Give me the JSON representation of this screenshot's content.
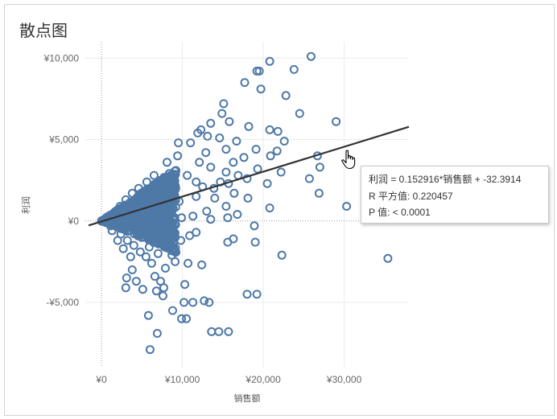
{
  "title": "散点图",
  "tooltip": {
    "line1": "利润 = 0.152916*销售额 + -32.3914",
    "line2": "R 平方值: 0.220457",
    "line3": "P 值: < 0.0001"
  },
  "colors": {
    "marker": "#4e79a7",
    "trend": "#333333"
  },
  "chart_data": {
    "type": "scatter",
    "xlabel": "销售额",
    "ylabel": "利润",
    "xlim": [
      -2000,
      38000
    ],
    "ylim": [
      -9000,
      11000
    ],
    "x_ticks": [
      0,
      10000,
      20000,
      30000
    ],
    "x_tick_labels": [
      "¥0",
      "¥10,000",
      "¥20,000",
      "¥30,000"
    ],
    "y_ticks": [
      -5000,
      0,
      5000,
      10000
    ],
    "y_tick_labels": [
      "-¥5,000",
      "¥0",
      "¥5,000",
      "¥10,000"
    ],
    "trend_line": {
      "slope": 0.152916,
      "intercept": -32.3914
    },
    "points": [
      [
        25900,
        10100
      ],
      [
        20800,
        9800
      ],
      [
        23800,
        9300
      ],
      [
        19200,
        9200
      ],
      [
        19500,
        9200
      ],
      [
        17700,
        8500
      ],
      [
        19700,
        8100
      ],
      [
        22800,
        7700
      ],
      [
        15100,
        7200
      ],
      [
        24500,
        6600
      ],
      [
        14900,
        6600
      ],
      [
        29000,
        6100
      ],
      [
        15800,
        6100
      ],
      [
        13500,
        6000
      ],
      [
        18200,
        5800
      ],
      [
        20800,
        5600
      ],
      [
        21800,
        5500
      ],
      [
        12300,
        5600
      ],
      [
        11900,
        5400
      ],
      [
        13100,
        5200
      ],
      [
        14600,
        5100
      ],
      [
        16700,
        4900
      ],
      [
        11000,
        4800
      ],
      [
        9500,
        4800
      ],
      [
        22600,
        4900
      ],
      [
        19100,
        4400
      ],
      [
        21700,
        4300
      ],
      [
        15400,
        4400
      ],
      [
        12900,
        4200
      ],
      [
        26700,
        4000
      ],
      [
        20900,
        4000
      ],
      [
        9400,
        4000
      ],
      [
        17600,
        3900
      ],
      [
        12100,
        3600
      ],
      [
        16300,
        3600
      ],
      [
        27000,
        3300
      ],
      [
        13500,
        3300
      ],
      [
        19300,
        3200
      ],
      [
        15400,
        3000
      ],
      [
        22200,
        3000
      ],
      [
        16900,
        2800
      ],
      [
        10600,
        2800
      ],
      [
        25700,
        2600
      ],
      [
        18000,
        2600
      ],
      [
        11700,
        2400
      ],
      [
        14700,
        2400
      ],
      [
        20500,
        2300
      ],
      [
        15700,
        2300
      ],
      [
        13900,
        2000
      ],
      [
        12500,
        2100
      ],
      [
        16400,
        1700
      ],
      [
        26900,
        1700
      ],
      [
        11700,
        1500
      ],
      [
        14000,
        1400
      ],
      [
        18100,
        1400
      ],
      [
        30300,
        900
      ],
      [
        20800,
        800
      ],
      [
        15400,
        900
      ],
      [
        13000,
        600
      ],
      [
        16800,
        400
      ],
      [
        13500,
        100
      ],
      [
        11300,
        300
      ],
      [
        9900,
        200
      ],
      [
        15600,
        200
      ],
      [
        18900,
        -300
      ],
      [
        11700,
        -700
      ],
      [
        16300,
        -1100
      ],
      [
        19000,
        -1300
      ],
      [
        15600,
        -1300
      ],
      [
        10900,
        -900
      ],
      [
        9800,
        -1200
      ],
      [
        35400,
        -2300
      ],
      [
        22300,
        -2100
      ],
      [
        12400,
        -2700
      ],
      [
        10700,
        -2600
      ],
      [
        8700,
        -2100
      ],
      [
        9100,
        -2500
      ],
      [
        7000,
        -2000
      ],
      [
        5900,
        -1600
      ],
      [
        8400,
        -1700
      ],
      [
        7900,
        -2900
      ],
      [
        6600,
        -3400
      ],
      [
        3800,
        -3000
      ],
      [
        3100,
        -3500
      ],
      [
        4300,
        -3700
      ],
      [
        3000,
        -4100
      ],
      [
        5100,
        -4200
      ],
      [
        7300,
        -3700
      ],
      [
        10300,
        -3900
      ],
      [
        7700,
        -4100
      ],
      [
        6800,
        -4300
      ],
      [
        7600,
        -4600
      ],
      [
        18000,
        -4500
      ],
      [
        19200,
        -4500
      ],
      [
        10200,
        -5000
      ],
      [
        11300,
        -5000
      ],
      [
        12700,
        -4900
      ],
      [
        13300,
        -5000
      ],
      [
        8800,
        -5500
      ],
      [
        5800,
        -5800
      ],
      [
        9900,
        -6000
      ],
      [
        10500,
        -6000
      ],
      [
        6900,
        -6900
      ],
      [
        13600,
        -6800
      ],
      [
        14500,
        -6800
      ],
      [
        15700,
        -6800
      ],
      [
        6000,
        -7900
      ],
      [
        1500,
        200
      ],
      [
        2200,
        600
      ],
      [
        2900,
        900
      ],
      [
        3500,
        1100
      ],
      [
        4100,
        1300
      ],
      [
        4800,
        1500
      ],
      [
        5300,
        1700
      ],
      [
        6100,
        1900
      ],
      [
        6700,
        2200
      ],
      [
        7300,
        2400
      ],
      [
        7900,
        2500
      ],
      [
        8600,
        2700
      ],
      [
        9200,
        3100
      ],
      [
        8100,
        3600
      ],
      [
        6500,
        2800
      ],
      [
        5600,
        2400
      ],
      [
        4600,
        2000
      ],
      [
        3800,
        1700
      ],
      [
        3000,
        1300
      ],
      [
        2300,
        900
      ],
      [
        1800,
        -300
      ],
      [
        2400,
        -800
      ],
      [
        3200,
        -1200
      ],
      [
        4000,
        -1500
      ],
      [
        4800,
        -1900
      ],
      [
        5500,
        -2200
      ],
      [
        6200,
        -2600
      ],
      [
        3600,
        -2200
      ],
      [
        2700,
        -1700
      ],
      [
        2000,
        -1200
      ],
      [
        1300,
        -600
      ],
      [
        800,
        200
      ],
      [
        1100,
        -300
      ],
      [
        5000,
        500
      ],
      [
        7000,
        800
      ],
      [
        8500,
        1000
      ],
      [
        9600,
        1200
      ],
      [
        6300,
        300
      ],
      [
        4200,
        -300
      ],
      [
        7400,
        -500
      ]
    ],
    "dense_region": {
      "upper_slope": 0.36,
      "lower_slope": -0.23,
      "mid_slope": 0.12,
      "x_max": 9200
    }
  }
}
